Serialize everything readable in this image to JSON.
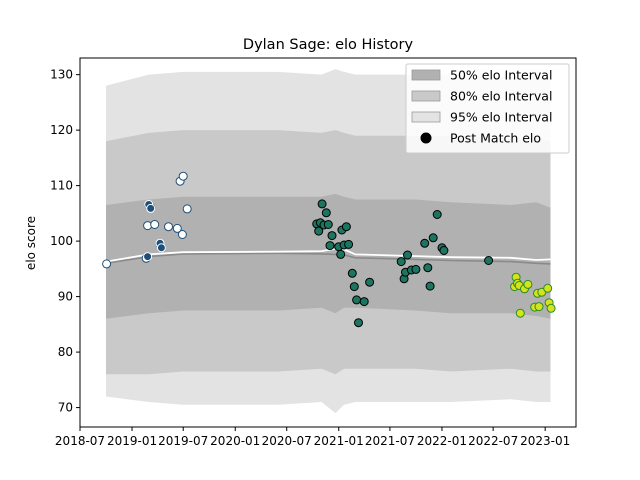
{
  "chart_data": {
    "type": "scatter",
    "title": "Dylan Sage: elo History",
    "xlabel": "",
    "ylabel": "elo score",
    "xlim": [
      "2018-07-01",
      "2023-04-20"
    ],
    "ylim": [
      66.5,
      133
    ],
    "x_ticks": [
      "2018-07-01",
      "2019-01-01",
      "2019-07-01",
      "2020-01-01",
      "2020-07-01",
      "2021-01-01",
      "2021-07-01",
      "2022-01-01",
      "2022-07-01",
      "2023-01-01"
    ],
    "x_tick_labels": [
      "2018-07",
      "2019-01",
      "2019-07",
      "2020-01",
      "2020-07",
      "2021-01",
      "2021-07",
      "2022-01",
      "2022-07",
      "2023-01"
    ],
    "y_ticks": [
      70,
      80,
      90,
      100,
      110,
      120,
      130
    ],
    "legend_position": "upper-right",
    "legend": [
      {
        "label": "50% elo Interval",
        "color": "#b1b1b1"
      },
      {
        "label": "80% elo Interval",
        "color": "#c9c9c9"
      },
      {
        "label": "95% elo Interval",
        "color": "#e3e3e3"
      },
      {
        "label": "Post Match elo",
        "color": "#000000"
      }
    ],
    "bands": {
      "x": [
        "2018-10-01",
        "2019-03-01",
        "2019-07-01",
        "2020-06-01",
        "2020-11-01",
        "2020-12-20",
        "2021-01-20",
        "2021-03-01",
        "2021-10-01",
        "2022-02-01",
        "2022-09-01",
        "2022-12-01",
        "2023-01-20"
      ],
      "p95_upper": [
        128,
        130,
        130.5,
        130.5,
        130,
        131,
        130.5,
        130,
        130,
        130,
        129.5,
        130,
        129
      ],
      "p95_lower": [
        72,
        71,
        70.5,
        70.5,
        71,
        69,
        70.5,
        71,
        71,
        71,
        71.5,
        71,
        71
      ],
      "p80_upper": [
        118,
        119.5,
        120,
        120,
        119.5,
        120,
        119.5,
        119,
        119,
        119,
        118.5,
        118.5,
        118
      ],
      "p80_lower": [
        76,
        76,
        76.5,
        76.5,
        77,
        76,
        77,
        77,
        77,
        76.5,
        77,
        76.5,
        76.5
      ],
      "p50_upper": [
        106.5,
        107.5,
        108,
        108,
        108,
        108.5,
        108,
        107.5,
        107.5,
        107,
        106.5,
        107,
        106
      ],
      "p50_lower": [
        86,
        87,
        87.5,
        87.5,
        88,
        87,
        88,
        88,
        87.5,
        87,
        87,
        86.5,
        86
      ],
      "white_line": [
        96.3,
        97.6,
        98,
        98.1,
        98.2,
        98.6,
        98.5,
        97.6,
        97.3,
        97.1,
        97,
        96.6,
        96.7
      ],
      "gray_line": [
        96,
        97.2,
        97.7,
        97.8,
        97.7,
        97.6,
        97.5,
        97,
        96.7,
        96.5,
        96.3,
        96,
        95.9
      ]
    },
    "series": [
      {
        "fill": "#ffffff",
        "edge": "#1f4e79",
        "points": [
          [
            "2018-10-03",
            95.9
          ],
          [
            "2019-02-20",
            96.9
          ],
          [
            "2019-02-25",
            102.8
          ],
          [
            "2019-03-01",
            106.5
          ],
          [
            "2019-03-08",
            106
          ],
          [
            "2019-03-22",
            103
          ],
          [
            "2019-04-10",
            99.5
          ],
          [
            "2019-04-15",
            98.8
          ],
          [
            "2019-05-10",
            102.6
          ],
          [
            "2019-06-10",
            102.3
          ],
          [
            "2019-06-20",
            110.8
          ],
          [
            "2019-06-28",
            101.2
          ],
          [
            "2019-07-01",
            111.7
          ],
          [
            "2019-07-15",
            105.8
          ]
        ]
      },
      {
        "fill": "#1f4e79",
        "edge": "#ffffff",
        "points": [
          [
            "2019-02-25",
            97.2
          ],
          [
            "2019-03-01",
            106.6
          ],
          [
            "2019-03-08",
            105.9
          ],
          [
            "2019-04-10",
            99.6
          ],
          [
            "2019-04-15",
            98.8
          ]
        ]
      },
      {
        "fill": "#1b7561",
        "edge": "#000000",
        "points": [
          [
            "2020-10-15",
            103.1
          ],
          [
            "2020-10-22",
            101.8
          ],
          [
            "2020-10-28",
            103.3
          ],
          [
            "2020-11-03",
            106.7
          ],
          [
            "2020-11-10",
            102.9
          ],
          [
            "2020-11-18",
            105.1
          ],
          [
            "2020-11-25",
            103
          ],
          [
            "2020-12-01",
            99.2
          ],
          [
            "2020-12-08",
            101
          ],
          [
            "2021-01-01",
            99
          ],
          [
            "2021-01-08",
            97.6
          ],
          [
            "2021-01-12",
            102
          ],
          [
            "2021-01-20",
            99.3
          ],
          [
            "2021-01-28",
            102.6
          ],
          [
            "2021-02-05",
            99.4
          ],
          [
            "2021-02-18",
            94.2
          ],
          [
            "2021-02-25",
            91.8
          ],
          [
            "2021-03-05",
            89.4
          ],
          [
            "2021-03-12",
            85.3
          ],
          [
            "2021-04-01",
            89.1
          ],
          [
            "2021-04-20",
            92.6
          ],
          [
            "2021-08-10",
            96.3
          ],
          [
            "2021-08-20",
            93.2
          ],
          [
            "2021-08-25",
            94.4
          ],
          [
            "2021-09-01",
            97.5
          ],
          [
            "2021-09-15",
            94.8
          ],
          [
            "2021-10-01",
            94.9
          ],
          [
            "2021-11-01",
            99.6
          ],
          [
            "2021-11-12",
            95.2
          ],
          [
            "2021-11-20",
            91.9
          ],
          [
            "2021-12-01",
            100.6
          ],
          [
            "2021-12-15",
            104.8
          ],
          [
            "2022-01-01",
            98.8
          ],
          [
            "2022-01-08",
            98.3
          ],
          [
            "2022-06-15",
            96.5
          ]
        ]
      },
      {
        "fill": "#d6e31c",
        "edge": "#2a8a2a",
        "points": [
          [
            "2022-09-15",
            91.8
          ],
          [
            "2022-09-20",
            93.5
          ],
          [
            "2022-09-25",
            92.4
          ],
          [
            "2022-10-01",
            92
          ],
          [
            "2022-10-05",
            87
          ],
          [
            "2022-10-20",
            91.4
          ],
          [
            "2022-11-01",
            92.2
          ],
          [
            "2022-11-25",
            88.1
          ],
          [
            "2022-12-05",
            90.6
          ],
          [
            "2022-12-10",
            88.2
          ],
          [
            "2022-12-20",
            90.8
          ],
          [
            "2023-01-10",
            91.5
          ],
          [
            "2023-01-15",
            88.9
          ],
          [
            "2023-01-22",
            87.9
          ]
        ]
      }
    ]
  }
}
